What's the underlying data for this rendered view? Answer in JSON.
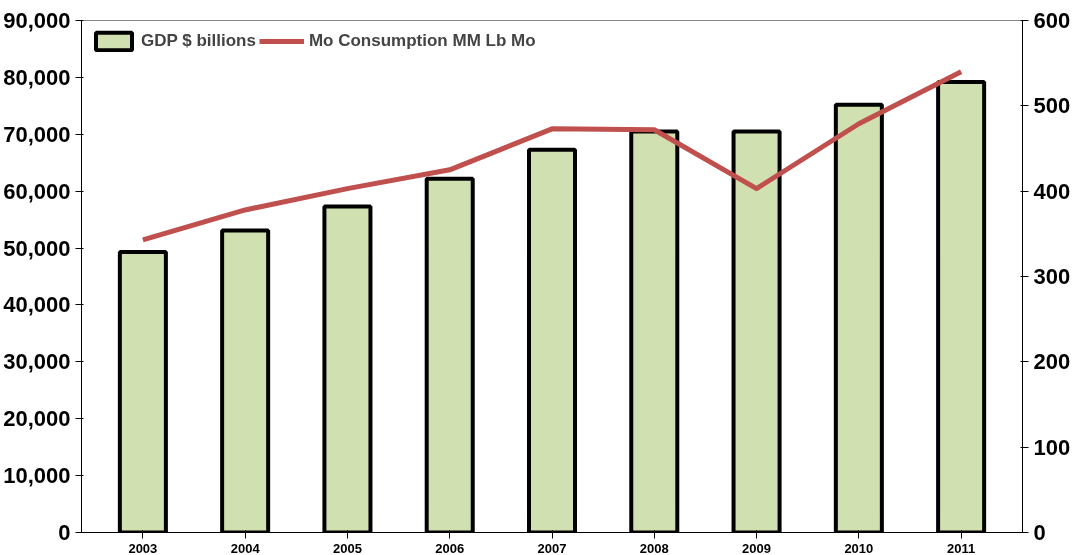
{
  "chart_data": {
    "type": "bar",
    "categories": [
      "2003",
      "2004",
      "2005",
      "2006",
      "2007",
      "2008",
      "2009",
      "2010",
      "2011"
    ],
    "series": [
      {
        "name": "GDP $ billions",
        "color": "#d1e0b0",
        "values": [
          49300,
          53100,
          57300,
          62200,
          67300,
          70500,
          70500,
          75200,
          79200
        ]
      },
      {
        "name": "Mo Consumption MM Lb Mo",
        "type": "line",
        "axis": "y2",
        "color": "#c0504d",
        "values": [
          343,
          378,
          403,
          425,
          473,
          472,
          403,
          479,
          540
        ]
      }
    ],
    "ylim": [
      0,
      90000
    ],
    "yticks": [
      {
        "value": 0,
        "label": "0"
      },
      {
        "value": 10000,
        "label": "10,000"
      },
      {
        "value": 20000,
        "label": "20,000"
      },
      {
        "value": 30000,
        "label": "30,000"
      },
      {
        "value": 40000,
        "label": "40,000"
      },
      {
        "value": 50000,
        "label": "50,000"
      },
      {
        "value": 60000,
        "label": "60,000"
      },
      {
        "value": 70000,
        "label": "70,000"
      },
      {
        "value": 80000,
        "label": "80,000"
      },
      {
        "value": 90000,
        "label": "90,000"
      }
    ],
    "y2lim": [
      0,
      600
    ],
    "y2ticks": [
      0,
      100,
      200,
      300,
      400,
      500,
      600
    ],
    "grid": false,
    "legend": "top left",
    "marker": "none",
    "line_style": "solid"
  }
}
